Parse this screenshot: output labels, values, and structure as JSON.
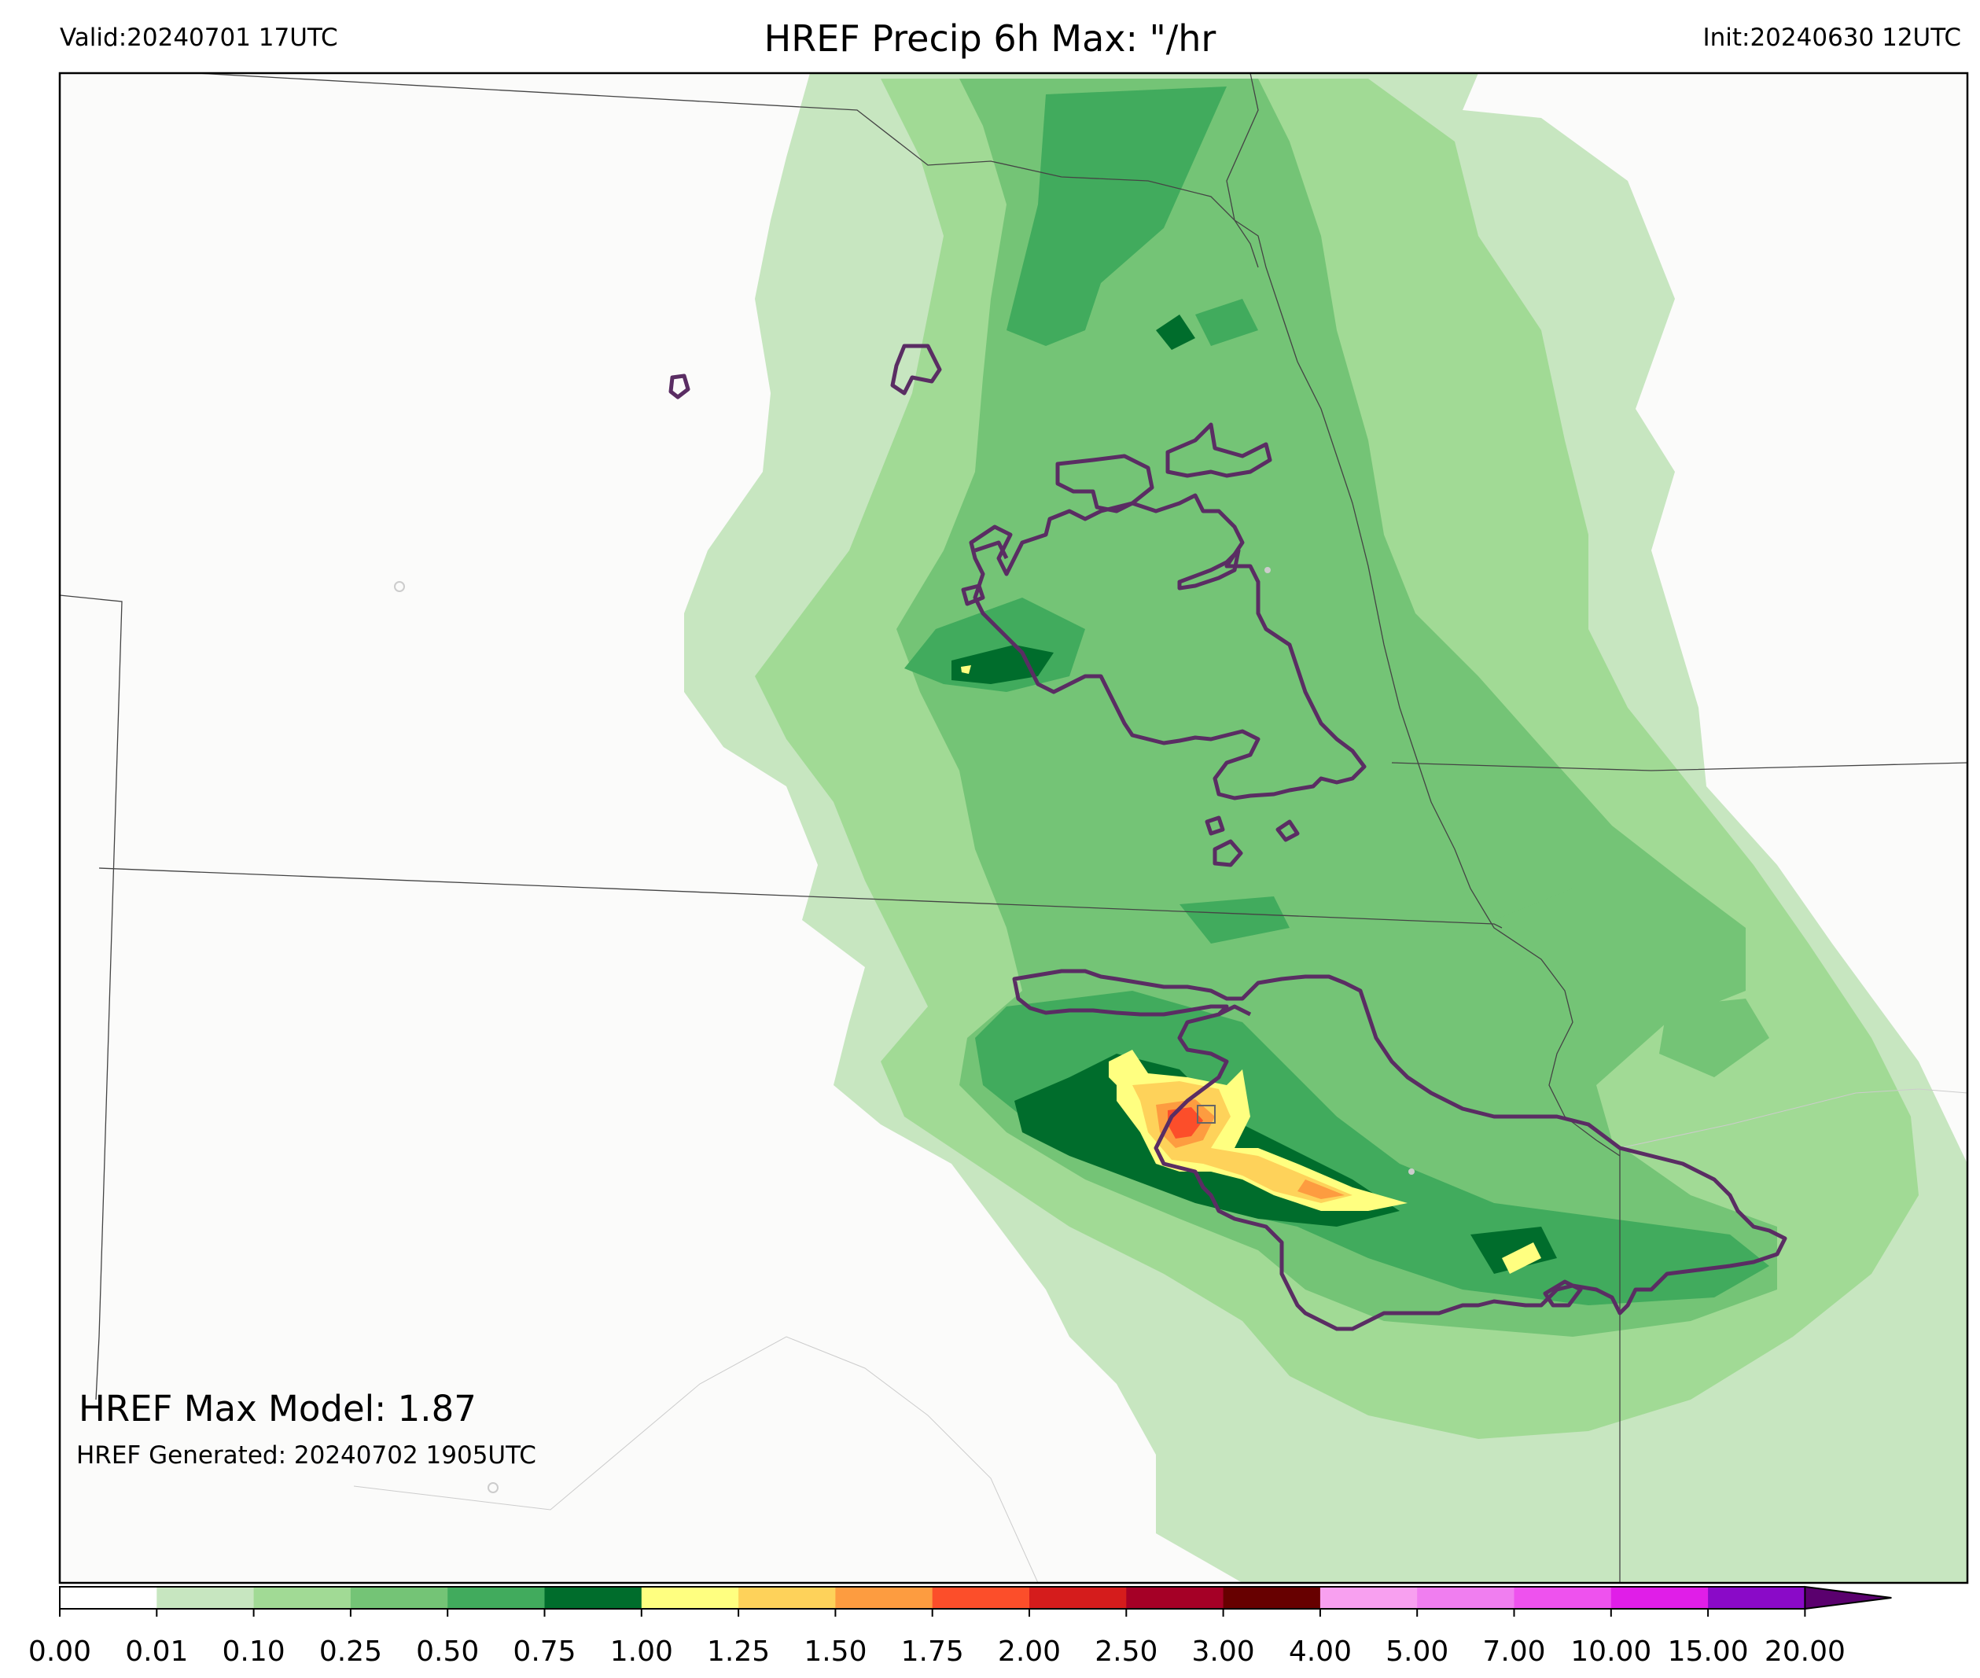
{
  "header": {
    "valid": "Valid:20240701 17UTC",
    "title": "HREF Precip 6h Max: \"/hr",
    "init": "Init:20240630 12UTC"
  },
  "annotations": {
    "max_model": "HREF Max Model: 1.87",
    "generated": "HREF Generated: 20240702 1905UTC"
  },
  "colorbar": {
    "levels": [
      "0.00",
      "0.01",
      "0.10",
      "0.25",
      "0.50",
      "0.75",
      "1.00",
      "1.25",
      "1.50",
      "1.75",
      "2.00",
      "2.50",
      "3.00",
      "4.00",
      "5.00",
      "7.00",
      "10.00",
      "15.00",
      "20.00"
    ],
    "colors": [
      "#ffffff",
      "#c7e6c0",
      "#a1da95",
      "#74c476",
      "#41ab5d",
      "#006d2c",
      "#ffff80",
      "#fed25a",
      "#fd9c40",
      "#fc4e2a",
      "#d51c1c",
      "#a50026",
      "#670000",
      "#f8a0f0",
      "#f07ef0",
      "#ee52ee",
      "#e01ee8",
      "#8a0ac8"
    ],
    "extend_color": "#5a006e"
  },
  "map_colors": {
    "background": "#fbfbfa",
    "boundary": "#444444",
    "contour": "#5a2d63",
    "marker": "#666666"
  }
}
